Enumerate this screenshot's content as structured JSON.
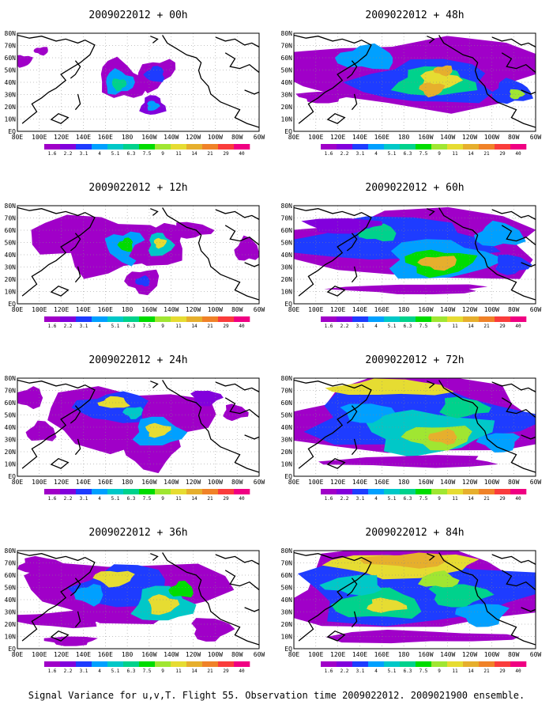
{
  "caption": "Signal Variance for u,v,T. Flight 55. Observation time 2009022012. 2009021900 ensemble.",
  "lon_labels": [
    "80E",
    "100E",
    "120E",
    "140E",
    "160E",
    "180",
    "160W",
    "140W",
    "120W",
    "100W",
    "80W",
    "60W"
  ],
  "lat_labels": [
    "80N",
    "70N",
    "60N",
    "50N",
    "40N",
    "30N",
    "20N",
    "10N",
    "EQ"
  ],
  "colorbar": {
    "levels": [
      "1.6",
      "2.2",
      "3.1",
      "4",
      "5.1",
      "6.3",
      "7.5",
      "9",
      "11",
      "14",
      "21",
      "29",
      "40"
    ],
    "colors": [
      "#a000c8",
      "#8200dc",
      "#1e3cff",
      "#00a0ff",
      "#00c8c8",
      "#00d28c",
      "#00dc00",
      "#a0e632",
      "#e6dc32",
      "#e6af2d",
      "#f08228",
      "#fa3c3c",
      "#f00082"
    ]
  },
  "panels": [
    {
      "title": "2009022012 + 00h",
      "lead_hours": 0
    },
    {
      "title": "2009022012 + 12h",
      "lead_hours": 12
    },
    {
      "title": "2009022012 + 24h",
      "lead_hours": 24
    },
    {
      "title": "2009022012 + 36h",
      "lead_hours": 36
    },
    {
      "title": "2009022012 + 48h",
      "lead_hours": 48
    },
    {
      "title": "2009022012 + 60h",
      "lead_hours": 60
    },
    {
      "title": "2009022012 + 72h",
      "lead_hours": 72
    },
    {
      "title": "2009022012 + 84h",
      "lead_hours": 84
    }
  ]
}
